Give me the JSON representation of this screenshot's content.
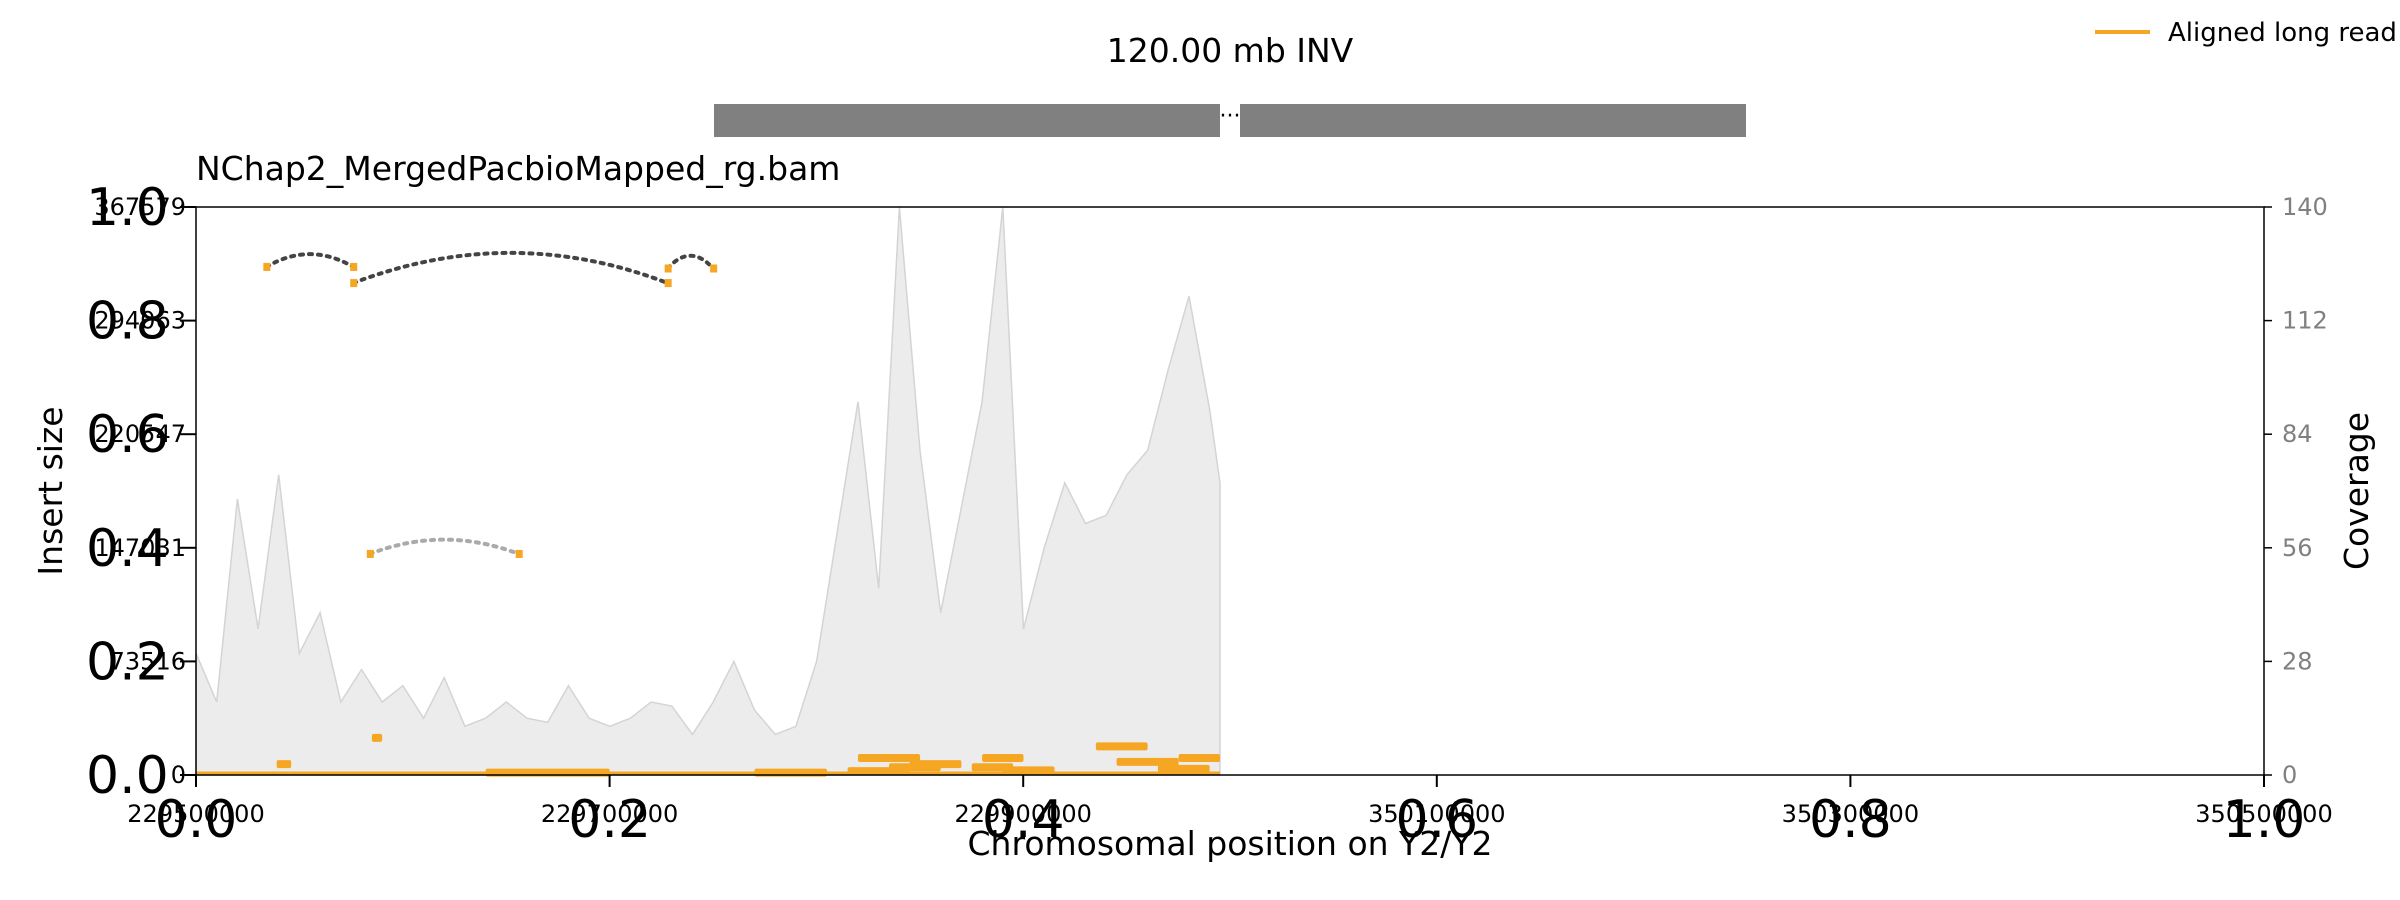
{
  "chart_data": {
    "type": "line",
    "title": "120.00 mb INV",
    "subtitle": "NChap2_MergedPacbioMapped_rg.bam",
    "xlabel": "Chromosomal position on Y2/Y2",
    "ylabel_left": "Insert size",
    "ylabel_right": "Coverage",
    "legend": {
      "label": "Aligned long read",
      "color": "#f5a623",
      "position": "top-right"
    },
    "x_ticks": [
      "229500000",
      "229700000",
      "229900000",
      "350100000",
      "350300000",
      "350500000"
    ],
    "x_axis_fraction_ticks": [
      "0.0",
      "0.2",
      "0.4",
      "0.6",
      "0.8",
      "1.0"
    ],
    "y_axis_fraction_ticks": [
      "0.0",
      "0.2",
      "0.4",
      "0.6",
      "0.8",
      "1.0"
    ],
    "y_left_ticks": [
      "0",
      "73516",
      "147031",
      "220547",
      "294063",
      "367579"
    ],
    "y_right_ticks": [
      "0",
      "28",
      "56",
      "84",
      "112",
      "140"
    ],
    "xlim_fraction": [
      0,
      1
    ],
    "ylim_insert": [
      0,
      367579
    ],
    "ylim_coverage": [
      0,
      140
    ],
    "segments": [
      {
        "region": "left",
        "xlim": [
          229500000,
          229995000
        ]
      },
      {
        "region": "right",
        "xlim": [
          350005000,
          350500000
        ]
      }
    ],
    "breakpoint_marker": "···",
    "colors": {
      "coverage_fill": "#ececec",
      "coverage_line": "#d4d4d4",
      "read": "#f5a623",
      "split_arc": "#444444",
      "region_bar": "#808080"
    },
    "coverage": {
      "x": [
        229500000,
        229510000,
        229520000,
        229530000,
        229540000,
        229550000,
        229560000,
        229570000,
        229580000,
        229590000,
        229600000,
        229610000,
        229620000,
        229630000,
        229640000,
        229650000,
        229660000,
        229670000,
        229680000,
        229690000,
        229700000,
        229710000,
        229720000,
        229730000,
        229740000,
        229750000,
        229760000,
        229770000,
        229780000,
        229790000,
        229800000,
        229810000,
        229820000,
        229830000,
        229840000,
        229850000,
        229860000,
        229870000,
        229880000,
        229890000,
        229900000,
        229910000,
        229920000,
        229930000,
        229940000,
        229950000,
        229960000,
        229970000,
        229980000,
        229990000,
        229995000
      ],
      "values": [
        30,
        18,
        68,
        36,
        74,
        30,
        40,
        18,
        26,
        18,
        22,
        14,
        24,
        12,
        14,
        18,
        14,
        13,
        22,
        14,
        12,
        14,
        18,
        17,
        10,
        18,
        28,
        16,
        10,
        12,
        28,
        60,
        92,
        46,
        140,
        80,
        40,
        66,
        92,
        140,
        36,
        56,
        72,
        62,
        64,
        74,
        80,
        100,
        118,
        90,
        72
      ]
    },
    "split_arcs": [
      {
        "from": 229534000,
        "to": 229576000,
        "insert": 335000
      },
      {
        "from": 229576000,
        "to": 229728000,
        "insert": 333000
      },
      {
        "from": 229728000,
        "to": 229750000,
        "insert": 334000
      },
      {
        "from": 229584000,
        "to": 229656000,
        "insert": 150000
      }
    ],
    "reads": [
      {
        "start": 229539000,
        "end": 229546000,
        "insert": 7000
      },
      {
        "start": 229585000,
        "end": 229590000,
        "insert": 24000
      },
      {
        "start": 229640000,
        "end": 229700000,
        "insert": 1500
      },
      {
        "start": 229770000,
        "end": 229805000,
        "insert": 1500
      },
      {
        "start": 229815000,
        "end": 229845000,
        "insert": 2500
      },
      {
        "start": 229820000,
        "end": 229850000,
        "insert": 11000
      },
      {
        "start": 229835000,
        "end": 229860000,
        "insert": 5000
      },
      {
        "start": 229845000,
        "end": 229870000,
        "insert": 7000
      },
      {
        "start": 229875000,
        "end": 229895000,
        "insert": 5000
      },
      {
        "start": 229880000,
        "end": 229900000,
        "insert": 11000
      },
      {
        "start": 229890000,
        "end": 229915000,
        "insert": 3000
      },
      {
        "start": 229935000,
        "end": 229960000,
        "insert": 18500
      },
      {
        "start": 229945000,
        "end": 229975000,
        "insert": 8500
      },
      {
        "start": 229965000,
        "end": 229990000,
        "insert": 4000
      },
      {
        "start": 229975000,
        "end": 229995000,
        "insert": 11000
      }
    ]
  }
}
